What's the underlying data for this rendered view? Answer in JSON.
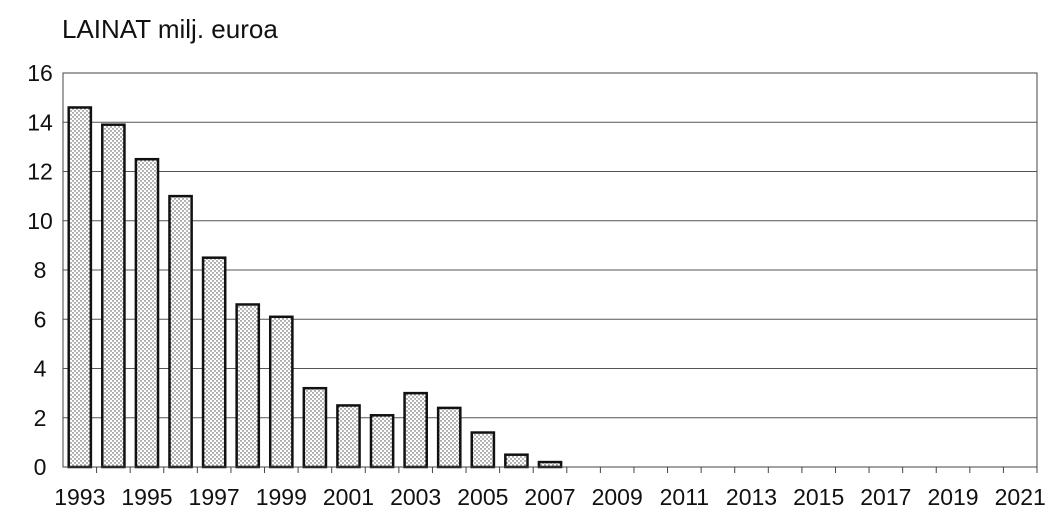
{
  "chart_data": {
    "type": "bar",
    "title": "LAINAT milj. euroa",
    "xlabel": "",
    "ylabel": "",
    "categories": [
      "1993",
      "1994",
      "1995",
      "1996",
      "1997",
      "1998",
      "1999",
      "2000",
      "2001",
      "2002",
      "2003",
      "2004",
      "2005",
      "2006",
      "2007",
      "2008",
      "2009",
      "2010",
      "2011",
      "2012",
      "2013",
      "2014",
      "2015",
      "2016",
      "2017",
      "2018",
      "2019",
      "2020",
      "2021"
    ],
    "values": [
      14.6,
      13.9,
      12.5,
      11.0,
      8.5,
      6.6,
      6.1,
      3.2,
      2.5,
      2.1,
      3.0,
      2.4,
      1.4,
      0.5,
      0.2,
      0,
      0,
      0,
      0,
      0,
      0,
      0,
      0,
      0,
      0,
      0,
      0,
      0,
      0
    ],
    "ylim": [
      0,
      16
    ],
    "yticks": [
      0,
      2,
      4,
      6,
      8,
      10,
      12,
      14,
      16
    ],
    "xtick_labels": [
      "1993",
      "1995",
      "1997",
      "1999",
      "2001",
      "2003",
      "2005",
      "2007",
      "2009",
      "2011",
      "2013",
      "2015",
      "2017",
      "2019",
      "2021"
    ],
    "grid": true,
    "bar_pattern": "dotted"
  }
}
